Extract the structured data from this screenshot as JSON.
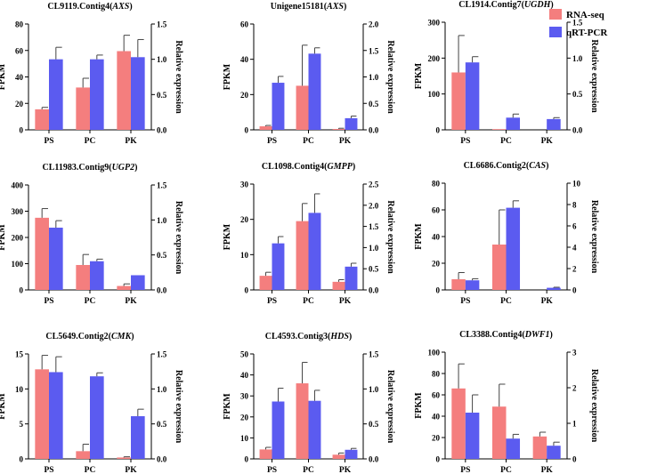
{
  "colors": {
    "rna": "#f47e7e",
    "qpcr": "#5b5bf0"
  },
  "legend": {
    "rna_label": "RNA-seq",
    "qpcr_label": "qRT-PCR"
  },
  "chart_data": [
    {
      "type": "bar",
      "title_main": "CL9119.Contig4(",
      "title_gene": "AXS",
      "title_end": ")",
      "categories": [
        "PS",
        "PC",
        "PK"
      ],
      "ylabel": "FPKM",
      "y2label": "Relative expression",
      "ylim": [
        0,
        80
      ],
      "yticks": [
        0,
        20,
        40,
        60,
        80
      ],
      "y2lim": [
        0,
        1.5
      ],
      "y2ticks": [
        "0.0",
        "0.5",
        "1.0",
        "1.5"
      ],
      "series": [
        {
          "name": "RNA-seq",
          "axis": "left",
          "values": [
            15.5,
            32,
            59.5
          ],
          "errors": [
            1.5,
            7,
            12
          ]
        },
        {
          "name": "qRT-PCR",
          "axis": "right",
          "values": [
            1.0,
            1.0,
            1.03
          ],
          "errors": [
            0.17,
            0.06,
            0.25
          ]
        }
      ]
    },
    {
      "type": "bar",
      "title_main": "Unigene15181(",
      "title_gene": "AXS",
      "title_end": ")",
      "categories": [
        "PS",
        "PC",
        "PK"
      ],
      "ylabel": "FPKM",
      "y2label": "Relative expression",
      "ylim": [
        0,
        60
      ],
      "yticks": [
        0,
        20,
        40,
        60
      ],
      "y2lim": [
        0,
        2.0
      ],
      "y2ticks": [
        "0.0",
        "0.5",
        "1.0",
        "1.5",
        "2.0"
      ],
      "series": [
        {
          "name": "RNA-seq",
          "axis": "left",
          "values": [
            2,
            25,
            0.5
          ],
          "errors": [
            0.5,
            23,
            0.4
          ]
        },
        {
          "name": "qRT-PCR",
          "axis": "right",
          "values": [
            0.89,
            1.44,
            0.22
          ],
          "errors": [
            0.12,
            0.11,
            0.04
          ]
        }
      ]
    },
    {
      "type": "bar",
      "title_main": "CL1914.Contig7(",
      "title_gene": "UGDH",
      "title_end": ")",
      "categories": [
        "PS",
        "PC",
        "PK"
      ],
      "ylabel": "FPKM",
      "y2label": "Relative expression",
      "ylim": [
        0,
        300
      ],
      "yticks": [
        0,
        100,
        200,
        300
      ],
      "y2lim": [
        0,
        1.5
      ],
      "y2ticks": [
        "0.0",
        "0.5",
        "1.0",
        "1.5"
      ],
      "series": [
        {
          "name": "RNA-seq",
          "axis": "left",
          "values": [
            160,
            2,
            0
          ],
          "errors": [
            103,
            0,
            0
          ]
        },
        {
          "name": "qRT-PCR",
          "axis": "right",
          "values": [
            0.94,
            0.17,
            0.15
          ],
          "errors": [
            0.08,
            0.05,
            0.02
          ]
        }
      ]
    },
    {
      "type": "bar",
      "title_main": "CL11983.Contig9(",
      "title_gene": "UGP2",
      "title_end": ")",
      "categories": [
        "PS",
        "PC",
        "PK"
      ],
      "ylabel": "FPKM",
      "y2label": "Relative expression",
      "ylim": [
        0,
        400
      ],
      "yticks": [
        0,
        100,
        200,
        300,
        400
      ],
      "y2lim": [
        0,
        1.5
      ],
      "y2ticks": [
        "0.0",
        "0.5",
        "1.0",
        "1.5"
      ],
      "series": [
        {
          "name": "RNA-seq",
          "axis": "left",
          "values": [
            275,
            95,
            15
          ],
          "errors": [
            35,
            40,
            8
          ]
        },
        {
          "name": "qRT-PCR",
          "axis": "right",
          "values": [
            0.89,
            0.41,
            0.21
          ],
          "errors": [
            0.1,
            0.03,
            0
          ]
        }
      ]
    },
    {
      "type": "bar",
      "title_main": "CL1098.Contig4(",
      "title_gene": "GMPP",
      "title_end": ")",
      "categories": [
        "PS",
        "PC",
        "PK"
      ],
      "ylabel": "FPKM",
      "y2label": "Relative expression",
      "ylim": [
        0,
        30
      ],
      "yticks": [
        0,
        10,
        20,
        30
      ],
      "y2lim": [
        0,
        2.5
      ],
      "y2ticks": [
        "0.0",
        "0.5",
        "1.0",
        "1.5",
        "2.0",
        "2.5"
      ],
      "series": [
        {
          "name": "RNA-seq",
          "axis": "left",
          "values": [
            4,
            19.5,
            2.3
          ],
          "errors": [
            1,
            5,
            0.6
          ]
        },
        {
          "name": "qRT-PCR",
          "axis": "right",
          "values": [
            1.1,
            1.82,
            0.55
          ],
          "errors": [
            0.16,
            0.45,
            0.08
          ]
        }
      ]
    },
    {
      "type": "bar",
      "title_main": "CL6686.Contig2(",
      "title_gene": "CAS",
      "title_end": ")",
      "categories": [
        "PS",
        "PC",
        "PK"
      ],
      "ylabel": "FPKM",
      "y2label": "Relative expression",
      "ylim": [
        0,
        80
      ],
      "yticks": [
        0,
        20,
        40,
        60,
        80
      ],
      "y2lim": [
        0,
        10
      ],
      "y2ticks": [
        "0",
        "2",
        "4",
        "6",
        "8",
        "10"
      ],
      "series": [
        {
          "name": "RNA-seq",
          "axis": "left",
          "values": [
            8,
            34,
            0
          ],
          "errors": [
            5,
            26,
            0
          ]
        },
        {
          "name": "qRT-PCR",
          "axis": "right",
          "values": [
            0.9,
            7.7,
            0.2
          ],
          "errors": [
            0.15,
            0.65,
            0.05
          ]
        }
      ]
    },
    {
      "type": "bar",
      "title_main": "CL5649.Contig2(",
      "title_gene": "CMK",
      "title_end": ")",
      "categories": [
        "PS",
        "PC",
        "PK"
      ],
      "ylabel": "FPKM",
      "y2label": "Relative expression",
      "ylim": [
        0,
        15
      ],
      "yticks": [
        0,
        5,
        10,
        15
      ],
      "y2lim": [
        0,
        1.5
      ],
      "y2ticks": [
        "0.0",
        "0.5",
        "1.0",
        "1.5"
      ],
      "series": [
        {
          "name": "RNA-seq",
          "axis": "left",
          "values": [
            12.8,
            1.1,
            0.2
          ],
          "errors": [
            2,
            1,
            0.1
          ]
        },
        {
          "name": "qRT-PCR",
          "axis": "right",
          "values": [
            1.24,
            1.18,
            0.61
          ],
          "errors": [
            0.22,
            0.05,
            0.1
          ]
        }
      ]
    },
    {
      "type": "bar",
      "title_main": "CL4593.Contig3(",
      "title_gene": "HDS",
      "title_end": ")",
      "categories": [
        "PS",
        "PC",
        "PK"
      ],
      "ylabel": "FPKM",
      "y2label": "Relative expression",
      "ylim": [
        0,
        50
      ],
      "yticks": [
        0,
        10,
        20,
        30,
        40,
        50
      ],
      "y2lim": [
        0,
        1.5
      ],
      "y2ticks": [
        "0.0",
        "0.5",
        "1.0",
        "1.5"
      ],
      "series": [
        {
          "name": "RNA-seq",
          "axis": "left",
          "values": [
            4.5,
            36,
            2
          ],
          "errors": [
            1,
            10,
            0.8
          ]
        },
        {
          "name": "qRT-PCR",
          "axis": "right",
          "values": [
            0.82,
            0.83,
            0.13
          ],
          "errors": [
            0.19,
            0.15,
            0.02
          ]
        }
      ]
    },
    {
      "type": "bar",
      "title_main": "CL3388.Contig4(",
      "title_gene": "DWF1",
      "title_end": ")",
      "categories": [
        "PS",
        "PC",
        "PK"
      ],
      "ylabel": "FPKM",
      "y2label": "Relative expression",
      "ylim": [
        0,
        100
      ],
      "yticks": [
        0,
        20,
        40,
        60,
        80,
        100
      ],
      "y2lim": [
        0,
        3
      ],
      "y2ticks": [
        "0",
        "1",
        "2",
        "3"
      ],
      "series": [
        {
          "name": "RNA-seq",
          "axis": "left",
          "values": [
            66,
            49,
            21
          ],
          "errors": [
            23,
            21,
            4
          ]
        },
        {
          "name": "qRT-PCR",
          "axis": "right",
          "values": [
            1.3,
            0.57,
            0.37
          ],
          "errors": [
            0.5,
            0.12,
            0.1
          ]
        }
      ]
    }
  ]
}
